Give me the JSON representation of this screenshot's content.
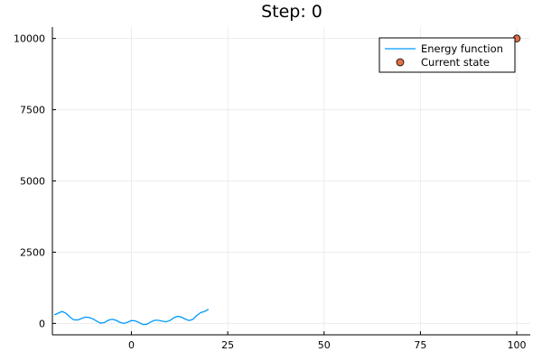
{
  "chart_data": {
    "type": "line",
    "title": "Step: 0",
    "xlabel": "",
    "ylabel": "",
    "xlim": [
      -20.5,
      103.5
    ],
    "ylim": [
      -400,
      10400
    ],
    "xticks": [
      0,
      25,
      50,
      75,
      100
    ],
    "yticks": [
      0,
      2500,
      5000,
      7500,
      10000
    ],
    "grid": true,
    "legend_position": "top-right",
    "series": [
      {
        "name": "Energy function",
        "type": "line",
        "color": "#009AFA",
        "x": [
          -20,
          -19,
          -18,
          -17,
          -16,
          -15,
          -14,
          -13,
          -12,
          -11,
          -10,
          -9,
          -8,
          -7,
          -6,
          -5,
          -4,
          -3,
          -2,
          -1,
          0,
          1,
          2,
          3,
          4,
          5,
          6,
          7,
          8,
          9,
          10,
          11,
          12,
          13,
          14,
          15,
          16,
          17,
          18,
          19,
          20
        ],
        "values": [
          300,
          360,
          420,
          360,
          230,
          130,
          120,
          170,
          220,
          210,
          160,
          80,
          10,
          30,
          110,
          150,
          110,
          40,
          0,
          40,
          100,
          90,
          30,
          -40,
          -30,
          50,
          110,
          110,
          80,
          60,
          100,
          200,
          250,
          220,
          150,
          100,
          150,
          280,
          380,
          420,
          500
        ]
      },
      {
        "name": "Current state",
        "type": "scatter",
        "color": "#E26F46",
        "x": [
          100
        ],
        "values": [
          10000
        ]
      }
    ]
  }
}
